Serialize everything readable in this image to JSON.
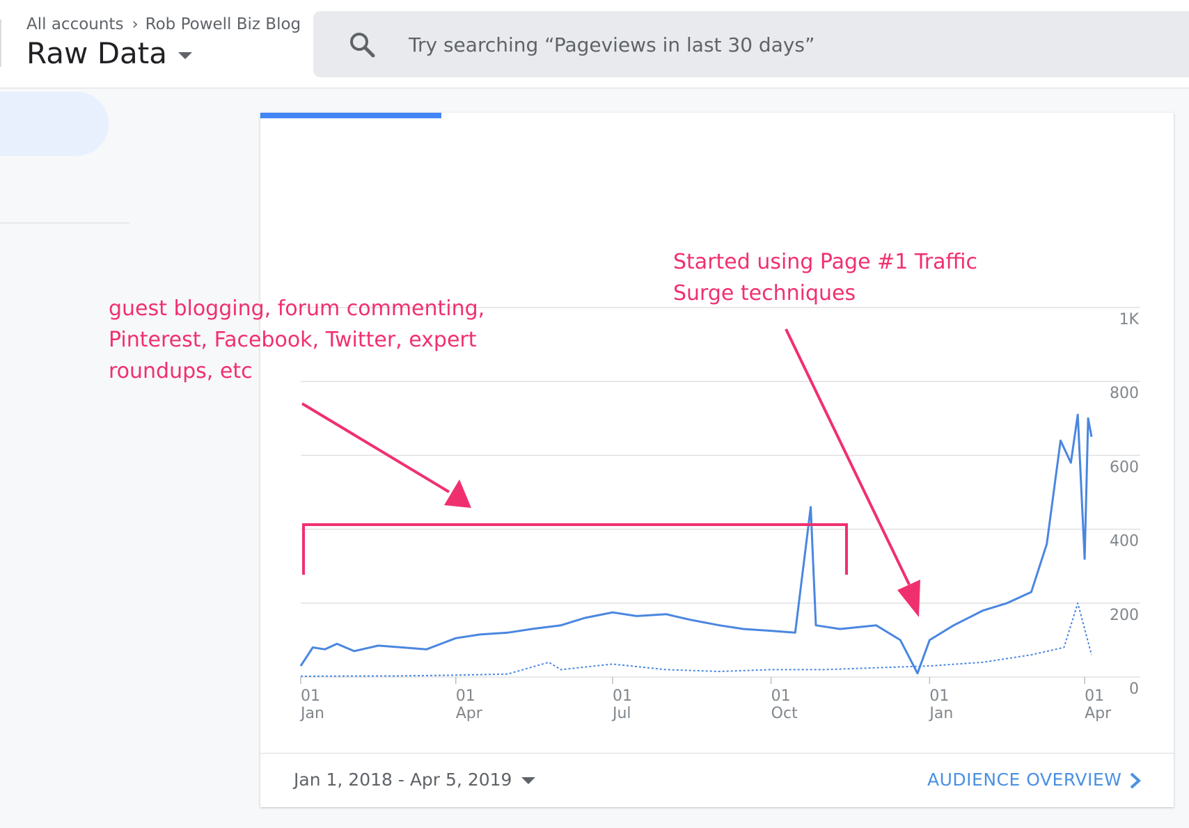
{
  "header": {
    "breadcrumb_root": "All accounts",
    "breadcrumb_account": "Rob Powell Biz Blog",
    "view_title": "Raw Data"
  },
  "search": {
    "placeholder": "Try searching “Pageviews in last 30 days”"
  },
  "card": {
    "date_range": "Jan 1, 2018 - Apr 5, 2019",
    "link_label": "AUDIENCE OVERVIEW"
  },
  "annotations": {
    "left_lines": [
      "guest blogging, forum commenting,",
      "Pinterest, Facebook, Twitter, expert",
      "roundups, etc"
    ],
    "right_lines": [
      "Started using Page #1 Traffic",
      "Surge techniques"
    ],
    "color": "#f0306e"
  },
  "colors": {
    "series_solid": "#4a86e0",
    "series_dotted": "#4a86e0",
    "accent_tab": "#4285f4",
    "link": "#4a90e2"
  },
  "chart_data": {
    "type": "line",
    "x_start": "2018-01-01",
    "x_end": "2019-04-05",
    "ylim": [
      0,
      1000
    ],
    "y_ticks": [
      "0",
      "200",
      "400",
      "600",
      "800",
      "1K"
    ],
    "x_ticks": [
      {
        "day": "01",
        "month": "Jan",
        "date": "2018-01-01"
      },
      {
        "day": "01",
        "month": "Apr",
        "date": "2018-04-01"
      },
      {
        "day": "01",
        "month": "Jul",
        "date": "2018-07-01"
      },
      {
        "day": "01",
        "month": "Oct",
        "date": "2018-10-01"
      },
      {
        "day": "01",
        "month": "Jan",
        "date": "2019-01-01"
      },
      {
        "day": "01",
        "month": "Apr",
        "date": "2019-04-01"
      }
    ],
    "grid": true,
    "series": [
      {
        "style": "solid",
        "points": [
          [
            "2018-01-01",
            30
          ],
          [
            "2018-01-08",
            80
          ],
          [
            "2018-01-15",
            75
          ],
          [
            "2018-01-22",
            90
          ],
          [
            "2018-02-01",
            70
          ],
          [
            "2018-02-15",
            85
          ],
          [
            "2018-03-01",
            80
          ],
          [
            "2018-03-15",
            75
          ],
          [
            "2018-04-01",
            105
          ],
          [
            "2018-04-15",
            115
          ],
          [
            "2018-05-01",
            120
          ],
          [
            "2018-05-15",
            130
          ],
          [
            "2018-06-01",
            140
          ],
          [
            "2018-06-15",
            160
          ],
          [
            "2018-07-01",
            175
          ],
          [
            "2018-07-15",
            165
          ],
          [
            "2018-08-01",
            170
          ],
          [
            "2018-08-15",
            155
          ],
          [
            "2018-09-01",
            140
          ],
          [
            "2018-09-15",
            130
          ],
          [
            "2018-10-01",
            125
          ],
          [
            "2018-10-15",
            120
          ],
          [
            "2018-10-24",
            460
          ],
          [
            "2018-10-27",
            140
          ],
          [
            "2018-11-10",
            130
          ],
          [
            "2018-12-01",
            140
          ],
          [
            "2018-12-15",
            100
          ],
          [
            "2018-12-25",
            10
          ],
          [
            "2019-01-01",
            100
          ],
          [
            "2019-01-15",
            140
          ],
          [
            "2019-02-01",
            180
          ],
          [
            "2019-02-15",
            200
          ],
          [
            "2019-03-01",
            230
          ],
          [
            "2019-03-10",
            360
          ],
          [
            "2019-03-18",
            640
          ],
          [
            "2019-03-24",
            580
          ],
          [
            "2019-03-28",
            710
          ],
          [
            "2019-04-01",
            320
          ],
          [
            "2019-04-03",
            700
          ],
          [
            "2019-04-05",
            650
          ]
        ]
      },
      {
        "style": "dotted",
        "points": [
          [
            "2018-01-01",
            2
          ],
          [
            "2018-03-01",
            3
          ],
          [
            "2018-04-01",
            5
          ],
          [
            "2018-05-01",
            8
          ],
          [
            "2018-05-25",
            40
          ],
          [
            "2018-06-01",
            20
          ],
          [
            "2018-07-01",
            35
          ],
          [
            "2018-08-01",
            20
          ],
          [
            "2018-09-01",
            15
          ],
          [
            "2018-10-01",
            20
          ],
          [
            "2018-11-01",
            20
          ],
          [
            "2018-12-01",
            25
          ],
          [
            "2019-01-01",
            30
          ],
          [
            "2019-02-01",
            40
          ],
          [
            "2019-03-01",
            60
          ],
          [
            "2019-03-20",
            80
          ],
          [
            "2019-03-28",
            200
          ],
          [
            "2019-04-05",
            60
          ]
        ]
      }
    ]
  }
}
